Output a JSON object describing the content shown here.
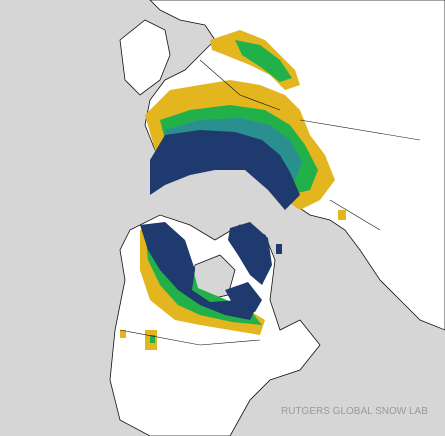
{
  "credit": "RUTGERS GLOBAL SNOW LAB"
}
